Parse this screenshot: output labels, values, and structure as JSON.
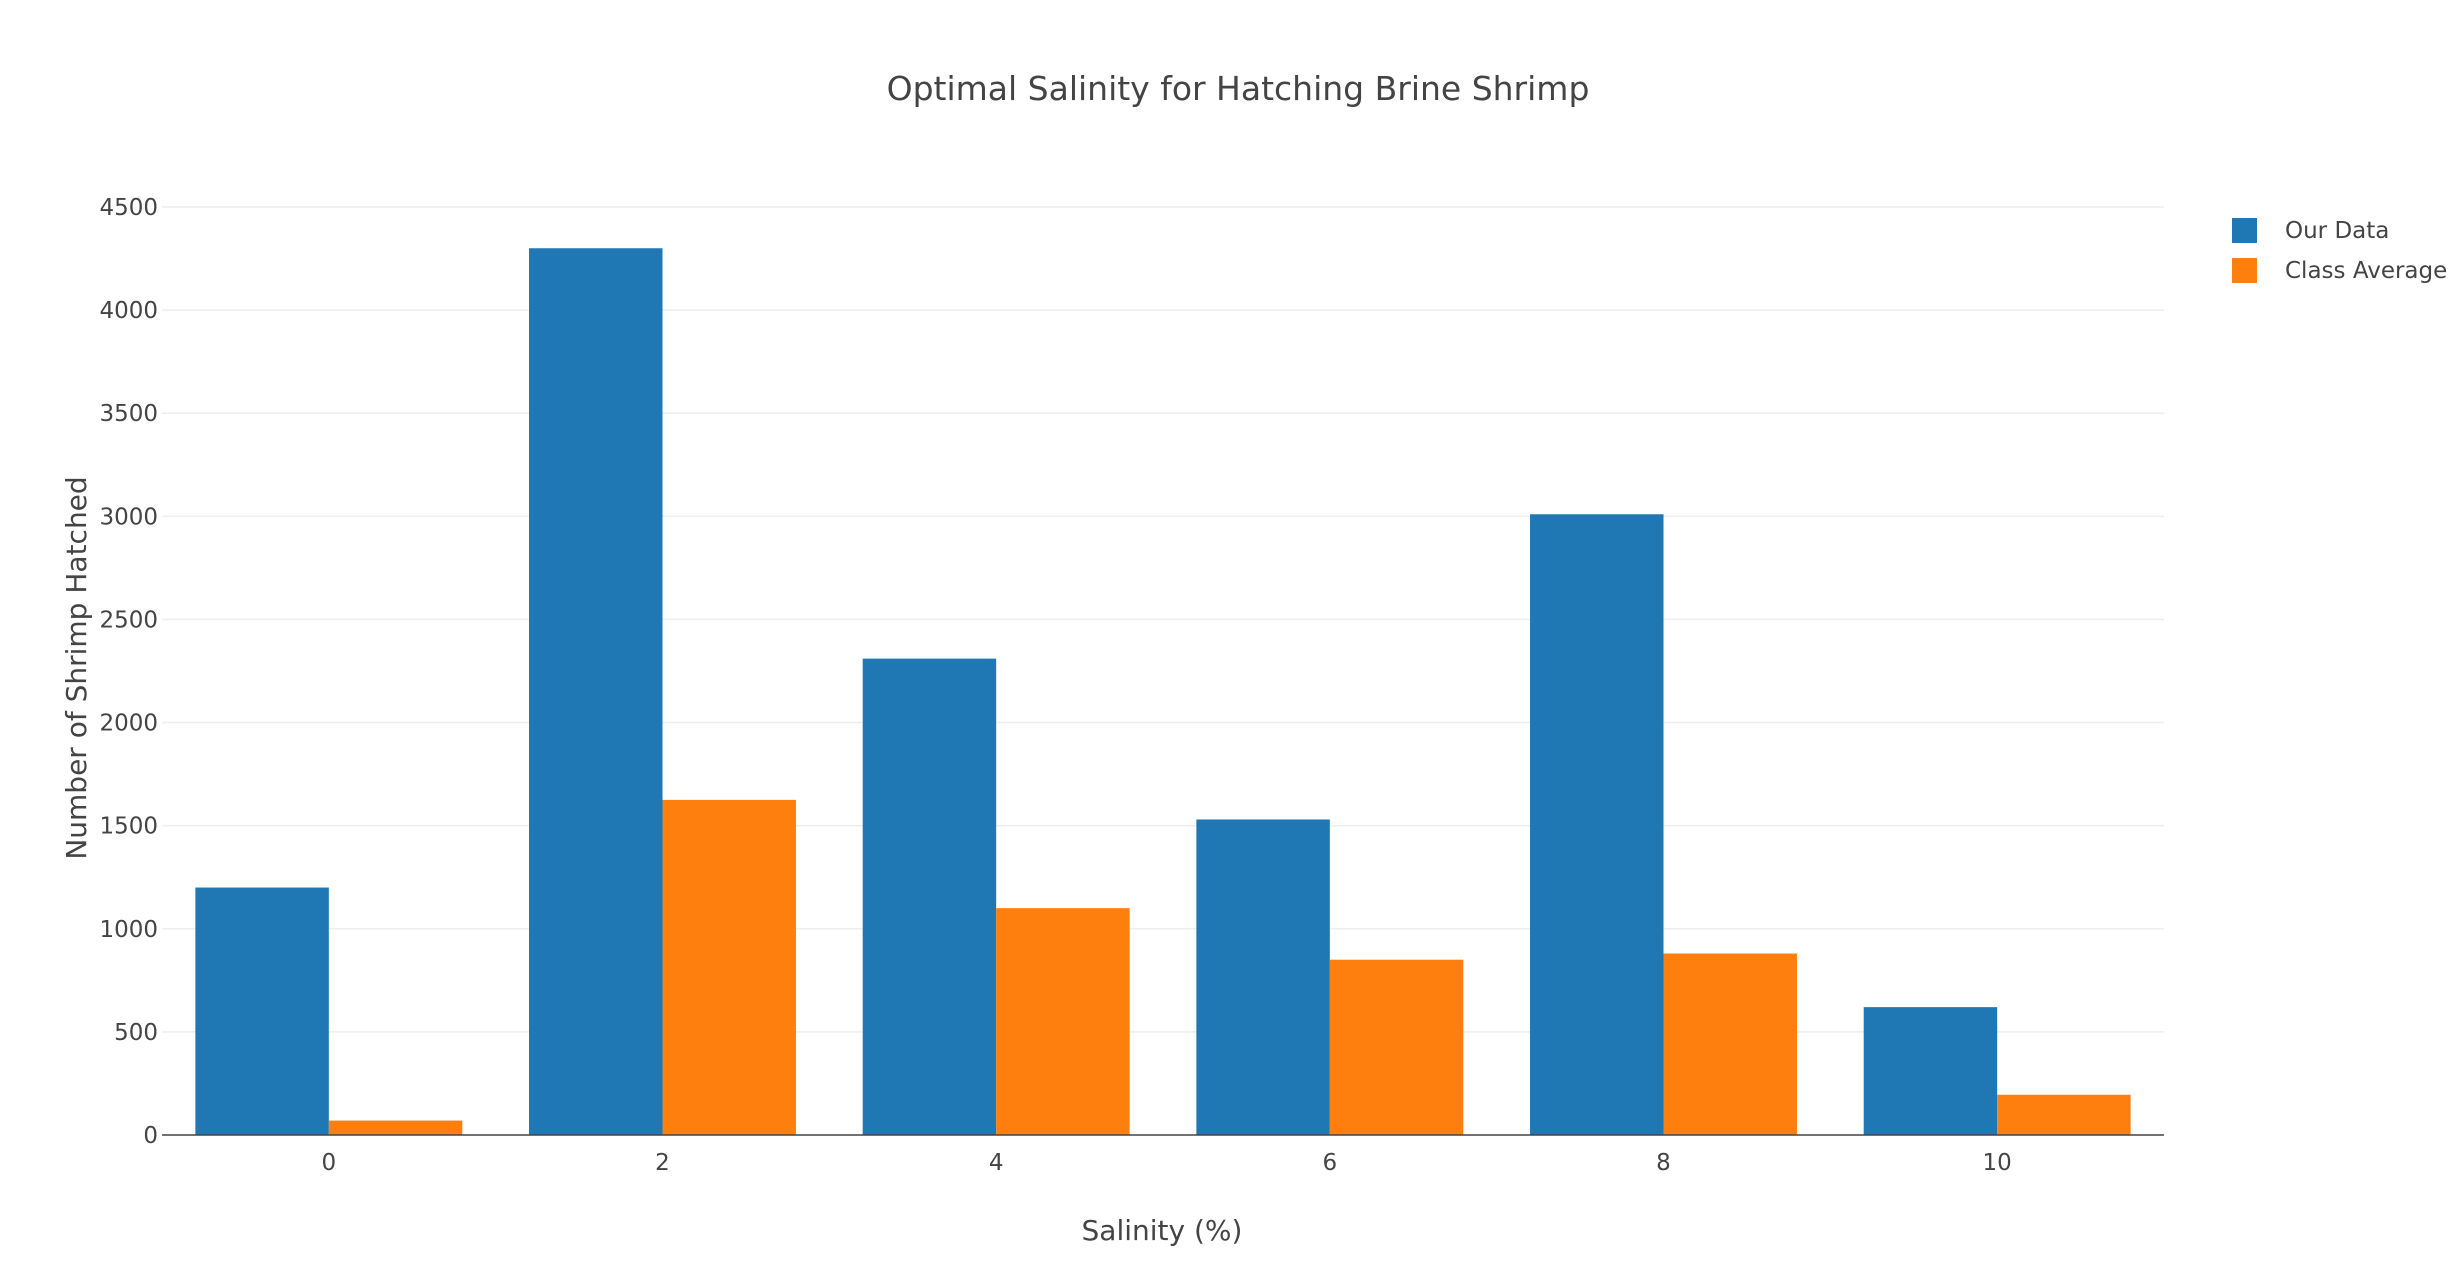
{
  "chart_data": {
    "type": "bar",
    "title": "Optimal Salinity for Hatching Brine Shrimp",
    "xlabel": "Salinity (%)",
    "ylabel": "Number of Shrimp Hatched",
    "categories": [
      "0",
      "2",
      "4",
      "6",
      "8",
      "10"
    ],
    "series": [
      {
        "name": "Our Data",
        "color": "#1f77b4",
        "values": [
          1200,
          4300,
          2310,
          1530,
          3010,
          620
        ]
      },
      {
        "name": "Class Average",
        "color": "#ff7f0e",
        "values": [
          70,
          1625,
          1100,
          850,
          880,
          195
        ]
      }
    ],
    "ylim": [
      0,
      4500
    ],
    "yticks": [
      0,
      500,
      1000,
      1500,
      2000,
      2500,
      3000,
      3500,
      4000,
      4500
    ],
    "grid": true,
    "legend_position": "top-right"
  }
}
